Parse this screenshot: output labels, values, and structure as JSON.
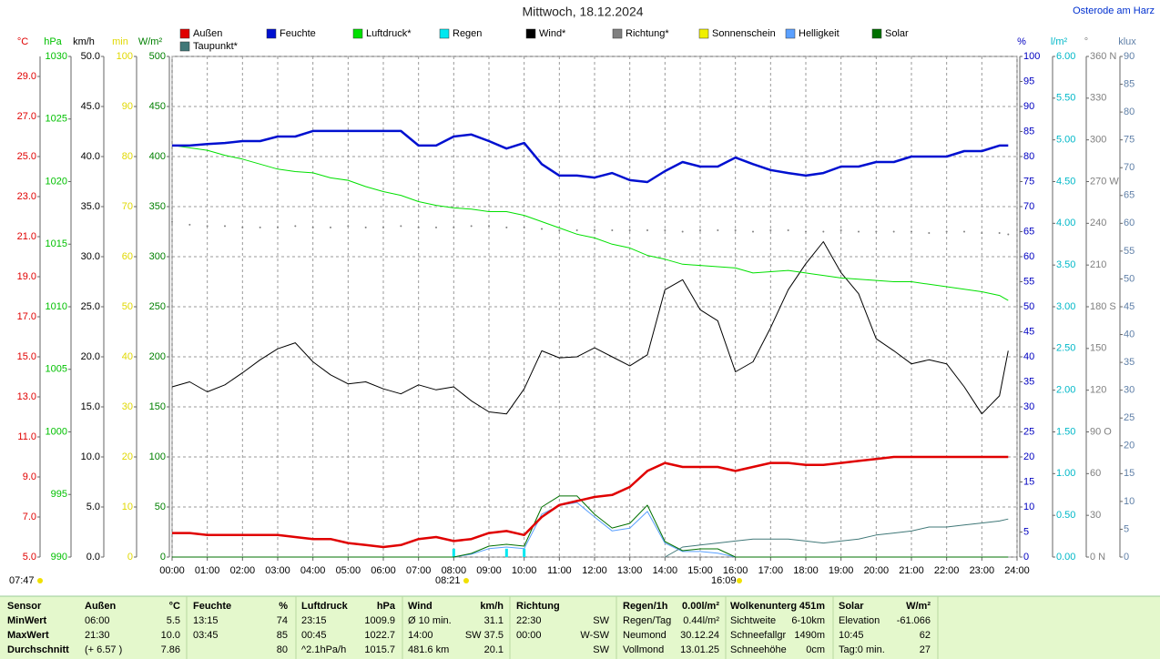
{
  "chart_data": {
    "type": "line",
    "title": "Mittwoch, 18.12.2024",
    "location": "Osterode am Harz",
    "grid": true,
    "xlim": [
      0,
      24
    ],
    "xticks": [
      {
        "value": 0,
        "label": "00:00"
      },
      {
        "value": 1,
        "label": "01:00"
      },
      {
        "value": 2,
        "label": "02:00"
      },
      {
        "value": 3,
        "label": "03:00"
      },
      {
        "value": 4,
        "label": "04:00"
      },
      {
        "value": 5,
        "label": "05:00"
      },
      {
        "value": 6,
        "label": "06:00"
      },
      {
        "value": 7,
        "label": "07:00"
      },
      {
        "value": 8,
        "label": "08:00"
      },
      {
        "value": 9,
        "label": "09:00"
      },
      {
        "value": 10,
        "label": "10:00"
      },
      {
        "value": 11,
        "label": "11:00"
      },
      {
        "value": 12,
        "label": "12:00"
      },
      {
        "value": 13,
        "label": "13:00"
      },
      {
        "value": 14,
        "label": "14:00"
      },
      {
        "value": 15,
        "label": "15:00"
      },
      {
        "value": 16,
        "label": "16:00"
      },
      {
        "value": 17,
        "label": "17:00"
      },
      {
        "value": 18,
        "label": "18:00"
      },
      {
        "value": 19,
        "label": "19:00"
      },
      {
        "value": 20,
        "label": "20:00"
      },
      {
        "value": 21,
        "label": "21:00"
      },
      {
        "value": 22,
        "label": "22:00"
      },
      {
        "value": 23,
        "label": "23:00"
      },
      {
        "value": 24,
        "label": "24:00"
      }
    ],
    "x": [
      0,
      0.5,
      1,
      1.5,
      2,
      2.5,
      3,
      3.5,
      4,
      4.5,
      5,
      5.5,
      6,
      6.5,
      7,
      7.5,
      8,
      8.5,
      9,
      9.5,
      10,
      10.5,
      11,
      11.5,
      12,
      12.5,
      13,
      13.5,
      14,
      14.5,
      15,
      15.5,
      16,
      16.5,
      17,
      17.5,
      18,
      18.5,
      19,
      19.5,
      20,
      20.5,
      21,
      21.5,
      22,
      22.5,
      23,
      23.5,
      23.75
    ],
    "axes": [
      {
        "unit": "°C",
        "color": "#e00000",
        "lim": [
          5,
          30
        ],
        "ticks": [
          {
            "value": 5,
            "label": "5.0"
          },
          {
            "value": 7,
            "label": "7.0"
          },
          {
            "value": 9,
            "label": "9.0"
          },
          {
            "value": 11,
            "label": "11.0"
          },
          {
            "value": 13,
            "label": "13.0"
          },
          {
            "value": 15,
            "label": "15.0"
          },
          {
            "value": 17,
            "label": "17.0"
          },
          {
            "value": 19,
            "label": "19.0"
          },
          {
            "value": 21,
            "label": "21.0"
          },
          {
            "value": 23,
            "label": "23.0"
          },
          {
            "value": 25,
            "label": "25.0"
          },
          {
            "value": 27,
            "label": "27.0"
          },
          {
            "value": 29,
            "label": "29.0"
          }
        ]
      },
      {
        "unit": "hPa",
        "color": "#00c000",
        "lim": [
          990,
          1030
        ],
        "ticks": [
          990,
          995,
          1000,
          1005,
          1010,
          1015,
          1020,
          1025,
          1030
        ]
      },
      {
        "unit": "km/h",
        "color": "#000000",
        "lim": [
          0,
          50
        ],
        "ticks": [
          {
            "value": 0,
            "label": "0.0"
          },
          {
            "value": 5,
            "label": "5.0"
          },
          {
            "value": 10,
            "label": "10.0"
          },
          {
            "value": 15,
            "label": "15.0"
          },
          {
            "value": 20,
            "label": "20.0"
          },
          {
            "value": 25,
            "label": "25.0"
          },
          {
            "value": 30,
            "label": "30.0"
          },
          {
            "value": 35,
            "label": "35.0"
          },
          {
            "value": 40,
            "label": "40.0"
          },
          {
            "value": 45,
            "label": "45.0"
          },
          {
            "value": 50,
            "label": "50.0"
          }
        ]
      },
      {
        "unit": "min",
        "color": "#e0d800",
        "lim": [
          0,
          100
        ],
        "ticks": [
          0,
          10,
          20,
          30,
          40,
          50,
          60,
          70,
          80,
          90,
          100
        ]
      },
      {
        "unit": "W/m²",
        "color": "#008000",
        "lim": [
          0,
          500
        ],
        "ticks": [
          0,
          50,
          100,
          150,
          200,
          250,
          300,
          350,
          400,
          450,
          500
        ]
      },
      {
        "unit": "%",
        "color": "#0000c0",
        "lim": [
          0,
          100
        ],
        "ticks": [
          0,
          5,
          10,
          15,
          20,
          25,
          30,
          35,
          40,
          45,
          50,
          55,
          60,
          65,
          70,
          75,
          80,
          85,
          90,
          95,
          100
        ]
      },
      {
        "unit": "l/m²",
        "color": "#00b8c8",
        "lim": [
          0,
          6
        ],
        "ticks": [
          {
            "value": 0,
            "label": "0.00"
          },
          {
            "value": 0.5,
            "label": "0.50"
          },
          {
            "value": 1,
            "label": "1.00"
          },
          {
            "value": 1.5,
            "label": "1.50"
          },
          {
            "value": 2,
            "label": "2.00"
          },
          {
            "value": 2.5,
            "label": "2.50"
          },
          {
            "value": 3,
            "label": "3.00"
          },
          {
            "value": 3.5,
            "label": "3.50"
          },
          {
            "value": 4,
            "label": "4.00"
          },
          {
            "value": 4.5,
            "label": "4.50"
          },
          {
            "value": 5,
            "label": "5.00"
          },
          {
            "value": 5.5,
            "label": "5.50"
          },
          {
            "value": 6,
            "label": "6.00"
          }
        ]
      },
      {
        "unit": "°",
        "color": "#808080",
        "lim": [
          0,
          360
        ],
        "ticks": [
          {
            "value": 0,
            "label": "0 N"
          },
          30,
          60,
          {
            "value": 90,
            "label": "90 O"
          },
          120,
          150,
          {
            "value": 180,
            "label": "180 S"
          },
          210,
          240,
          {
            "value": 270,
            "label": "270 W"
          },
          300,
          330,
          {
            "value": 360,
            "label": "360 N"
          }
        ]
      },
      {
        "unit": "klux",
        "color": "#6080a8",
        "lim": [
          0,
          90
        ],
        "ticks": [
          0,
          5,
          10,
          15,
          20,
          25,
          30,
          35,
          40,
          45,
          50,
          55,
          60,
          65,
          70,
          75,
          80,
          85,
          90
        ]
      }
    ],
    "series": [
      {
        "name": "Außen",
        "color": "#e00000",
        "axis": "°C",
        "type": "line",
        "width": 2.5,
        "values": [
          6.2,
          6.2,
          6.1,
          6.1,
          6.1,
          6.1,
          6.1,
          6.0,
          5.9,
          5.9,
          5.7,
          5.6,
          5.5,
          5.6,
          5.9,
          6.0,
          5.8,
          5.9,
          6.2,
          6.3,
          6.1,
          7.0,
          7.6,
          7.8,
          8.0,
          8.1,
          8.5,
          9.3,
          9.7,
          9.5,
          9.5,
          9.5,
          9.3,
          9.5,
          9.7,
          9.7,
          9.6,
          9.6,
          9.7,
          9.8,
          9.9,
          10.0,
          10.0,
          10.0,
          10.0,
          10.0,
          10.0,
          10.0,
          10.0
        ]
      },
      {
        "name": "Feuchte",
        "color": "#0010d0",
        "axis": "%",
        "type": "line",
        "width": 2.5,
        "values": [
          82.2,
          82.2,
          82.5,
          82.7,
          83.1,
          83.1,
          84.0,
          84.0,
          85.1,
          85.1,
          85.1,
          85.1,
          85.1,
          85.1,
          82.2,
          82.2,
          84.0,
          84.4,
          83.1,
          81.6,
          82.7,
          78.5,
          76.2,
          76.2,
          75.8,
          76.7,
          75.3,
          74.9,
          77.1,
          78.9,
          78.0,
          78.0,
          79.8,
          78.5,
          77.3,
          76.7,
          76.2,
          76.7,
          78.0,
          78.0,
          78.9,
          78.9,
          80.0,
          80.0,
          80.0,
          81.1,
          81.1,
          82.2,
          82.2
        ]
      },
      {
        "name": "Luftdruck*",
        "color": "#00e000",
        "axis": "hPa",
        "type": "line",
        "width": 1,
        "values": [
          1022.9,
          1022.7,
          1022.5,
          1022.1,
          1021.8,
          1021.4,
          1021.0,
          1020.8,
          1020.7,
          1020.3,
          1020.1,
          1019.6,
          1019.2,
          1018.9,
          1018.4,
          1018.1,
          1017.9,
          1017.8,
          1017.6,
          1017.6,
          1017.3,
          1016.8,
          1016.3,
          1015.8,
          1015.5,
          1015.0,
          1014.7,
          1014.1,
          1013.8,
          1013.4,
          1013.3,
          1013.2,
          1013.1,
          1012.7,
          1012.8,
          1012.9,
          1012.7,
          1012.5,
          1012.3,
          1012.2,
          1012.1,
          1012.0,
          1012.0,
          1011.8,
          1011.6,
          1011.4,
          1011.2,
          1010.9,
          1010.5
        ]
      },
      {
        "name": "Regen",
        "color": "#00e8f0",
        "axis": "l/m²",
        "type": "bar",
        "width": 3,
        "values": [
          0,
          0,
          0,
          0,
          0,
          0,
          0,
          0,
          0,
          0,
          0,
          0,
          0,
          0,
          0,
          0,
          0.1,
          0,
          0,
          0.1,
          0.1,
          0,
          0,
          0,
          0,
          0,
          0,
          0,
          0,
          0,
          0,
          0,
          0,
          0,
          0,
          0,
          0,
          0,
          0,
          0,
          0,
          0,
          0,
          0,
          0,
          0,
          0,
          0,
          0
        ]
      },
      {
        "name": "Wind*",
        "color": "#000000",
        "axis": "km/h",
        "type": "line",
        "width": 1,
        "values": [
          17.0,
          17.5,
          16.5,
          17.2,
          18.4,
          19.7,
          20.8,
          21.4,
          19.5,
          18.2,
          17.3,
          17.5,
          16.8,
          16.3,
          17.2,
          16.7,
          17.0,
          15.6,
          14.5,
          14.3,
          16.8,
          20.6,
          19.9,
          20.0,
          20.9,
          20.0,
          19.1,
          20.2,
          26.7,
          27.7,
          24.7,
          23.6,
          18.5,
          19.5,
          22.9,
          26.7,
          29.3,
          31.5,
          28.4,
          26.3,
          21.8,
          20.6,
          19.3,
          19.7,
          19.3,
          17.0,
          14.3,
          16.1,
          20.6
        ]
      },
      {
        "name": "Richtung*",
        "color": "#808080",
        "axis": "°",
        "type": "dots",
        "width": 2,
        "values": [
          241,
          239,
          238,
          238,
          237,
          237,
          237,
          238,
          237,
          237,
          238,
          237,
          237,
          238,
          237,
          237,
          237,
          238,
          238,
          237,
          237,
          236,
          235,
          235,
          235,
          235,
          235,
          235,
          235,
          234,
          235,
          235,
          235,
          234,
          235,
          235,
          234,
          234,
          235,
          234,
          234,
          234,
          234,
          233,
          234,
          234,
          233,
          233,
          232
        ]
      },
      {
        "name": "Sonnenschein",
        "color": "#f0f000",
        "axis": "min",
        "type": "bar",
        "width": 3,
        "values": [
          0,
          0,
          0,
          0,
          0,
          0,
          0,
          0,
          0,
          0,
          0,
          0,
          0,
          0,
          0,
          0,
          0,
          0,
          0,
          0,
          0,
          0,
          0,
          0,
          0,
          0,
          0,
          0,
          0,
          0,
          0,
          0,
          0,
          0,
          0,
          0,
          0,
          0,
          0,
          0,
          0,
          0,
          0,
          0,
          0,
          0,
          0,
          0,
          0
        ]
      },
      {
        "name": "Helligkeit",
        "color": "#5aa0ff",
        "axis": "klux",
        "type": "line",
        "width": 1,
        "values": [
          0,
          0,
          0,
          0,
          0,
          0,
          0,
          0,
          0,
          0,
          0,
          0,
          0,
          0,
          0,
          0,
          0,
          0.5,
          1.5,
          1.8,
          1.5,
          7.7,
          9.3,
          9.8,
          7.2,
          4.7,
          5.2,
          8.2,
          2.5,
          1.0,
          1.0,
          0.7,
          0,
          0,
          0,
          0,
          0,
          0,
          0,
          0,
          0,
          0,
          0,
          0,
          0,
          0,
          0,
          0,
          0
        ]
      },
      {
        "name": "Solar",
        "color": "#007000",
        "axis": "W/m²",
        "type": "line",
        "width": 1,
        "values": [
          0,
          0,
          0,
          0,
          0,
          0,
          0,
          0,
          0,
          0,
          0,
          0,
          0,
          0,
          0,
          0,
          0,
          3.6,
          10.9,
          12.7,
          10.9,
          50,
          61,
          61,
          42.7,
          29,
          33.6,
          51.8,
          15.5,
          6.4,
          8.2,
          8.2,
          0,
          0,
          0,
          0,
          0,
          0,
          0,
          0,
          0,
          0,
          0,
          0,
          0,
          0,
          0,
          0,
          0
        ]
      },
      {
        "name": "Taupunkt*",
        "color": "#407878",
        "axis": "°C",
        "type": "line",
        "width": 1,
        "values": [
          null,
          null,
          null,
          null,
          null,
          null,
          null,
          null,
          null,
          null,
          null,
          null,
          null,
          null,
          null,
          null,
          null,
          null,
          null,
          null,
          null,
          null,
          null,
          null,
          null,
          null,
          null,
          null,
          5.0,
          5.5,
          5.6,
          5.7,
          5.8,
          5.9,
          5.9,
          5.9,
          5.8,
          5.7,
          5.8,
          5.9,
          6.1,
          6.2,
          6.3,
          6.5,
          6.5,
          6.6,
          6.7,
          6.8,
          6.9
        ]
      }
    ],
    "annotations": [
      "07:47",
      "08:21",
      "16:09"
    ]
  },
  "stats": {
    "rows": [
      [
        "Sensor",
        "Außen",
        "°C",
        "Feuchte",
        "%",
        "Luftdruck",
        "hPa",
        "Wind",
        "km/h",
        "Richtung",
        null,
        "Regen/1h",
        "0.00l/m²",
        "Wolkenunterg",
        "451m",
        "Solar",
        "W/m²"
      ],
      [
        "MinWert",
        "06:00",
        "5.5",
        "13:15",
        "74",
        "23:15",
        "1009.9",
        "Ø 10 min.",
        "31.1",
        "22:30",
        "SW",
        "Regen/Tag",
        "0.44l/m²",
        "Sichtweite",
        "6-10km",
        "Elevation",
        "-61.066"
      ],
      [
        "MaxWert",
        "21:30",
        "10.0",
        "03:45",
        "85",
        "00:45",
        "1022.7",
        "14:00",
        "SW 37.5",
        "00:00",
        "W-SW",
        "Neumond",
        "30.12.24",
        "Schneefallgr",
        "1490m",
        "10:45",
        "62"
      ],
      [
        "Durchschnitt",
        "(+ 6.57 )",
        "7.86",
        null,
        "80",
        "^2.1hPa/h",
        "1015.7",
        "481.6 km",
        "20.1",
        null,
        "SW",
        "Vollmond",
        "13.01.25",
        "Schneehöhe",
        "0cm",
        "Tag:0 min.",
        "27"
      ]
    ]
  }
}
